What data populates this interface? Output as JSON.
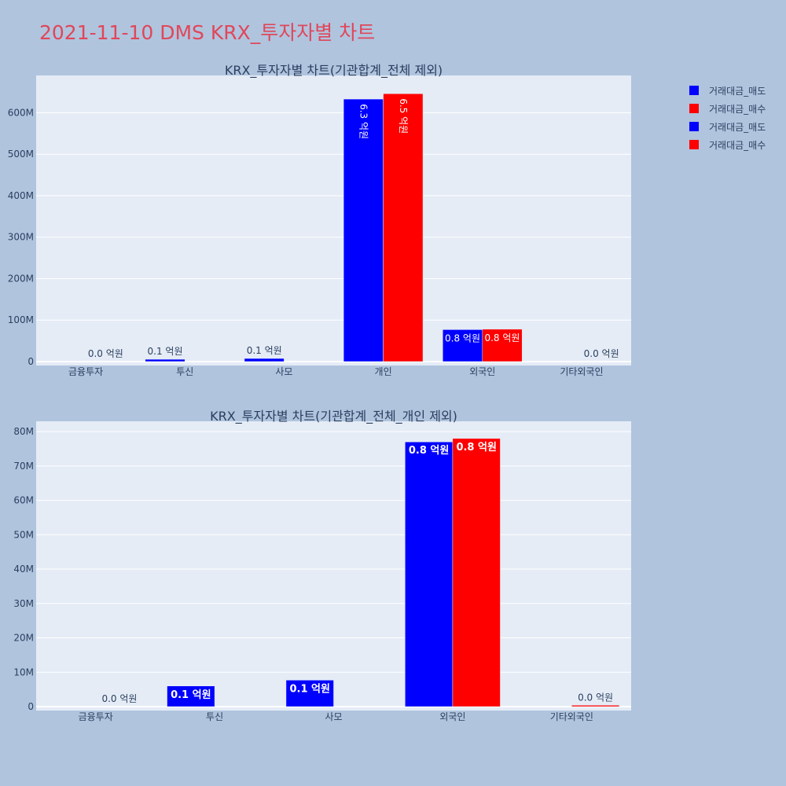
{
  "page_title": "2021-11-10 DMS KRX_투자자별 차트",
  "legend": [
    {
      "name": "거래대금_매도",
      "color": "#0000ff"
    },
    {
      "name": "거래대금_매수",
      "color": "#ff0000"
    },
    {
      "name": "거래대금_매도",
      "color": "#0000ff"
    },
    {
      "name": "거래대금_매수",
      "color": "#ff0000"
    }
  ],
  "chart_data": [
    {
      "type": "bar",
      "title": "KRX_투자자별 차트(기관합계_전체 제외)",
      "categories": [
        "금융투자",
        "투신",
        "사모",
        "개인",
        "외국인",
        "기타외국인"
      ],
      "ylim": [
        0,
        690000000
      ],
      "yticks": [
        0,
        100000000,
        200000000,
        300000000,
        400000000,
        500000000,
        600000000
      ],
      "ytick_labels": [
        "0",
        "100M",
        "200M",
        "300M",
        "400M",
        "500M",
        "600M"
      ],
      "series": [
        {
          "name": "거래대금_매도",
          "color": "#0000ff",
          "values": [
            0,
            5500000,
            7500000,
            633000000,
            77000000,
            0
          ],
          "labels": [
            "",
            "0.1 억원",
            "0.1 억원",
            "6.3 억원",
            "0.8 억원",
            ""
          ],
          "label_pos": [
            "",
            "outside",
            "outside",
            "inside-vertical",
            "inside",
            ""
          ]
        },
        {
          "name": "거래대금_매수",
          "color": "#ff0000",
          "values": [
            0,
            0,
            0,
            646000000,
            78000000,
            0
          ],
          "labels": [
            "0.0 억원",
            "",
            "",
            "6.5 억원",
            "0.8 억원",
            "0.0 억원"
          ],
          "label_pos": [
            "outside",
            "",
            "",
            "inside-vertical",
            "inside",
            "outside"
          ]
        }
      ]
    },
    {
      "type": "bar",
      "title": "KRX_투자자별 차트(기관합계_전체_개인 제외)",
      "categories": [
        "금융투자",
        "투신",
        "사모",
        "외국인",
        "기타외국인"
      ],
      "ylim": [
        0,
        83000000
      ],
      "yticks": [
        0,
        10000000,
        20000000,
        30000000,
        40000000,
        50000000,
        60000000,
        70000000,
        80000000
      ],
      "ytick_labels": [
        "0",
        "10M",
        "20M",
        "30M",
        "40M",
        "50M",
        "60M",
        "70M",
        "80M"
      ],
      "series": [
        {
          "name": "거래대금_매도",
          "color": "#0000ff",
          "values": [
            0,
            6000000,
            7700000,
            77000000,
            0
          ],
          "labels": [
            "",
            "0.1 억원",
            "0.1 억원",
            "0.8 억원",
            ""
          ],
          "label_pos": [
            "",
            "inside",
            "inside",
            "inside",
            ""
          ]
        },
        {
          "name": "거래대금_매수",
          "color": "#ff0000",
          "values": [
            0,
            0,
            0,
            78000000,
            400000
          ],
          "labels": [
            "0.0 억원",
            "",
            "",
            "0.8 억원",
            "0.0 억원"
          ],
          "label_pos": [
            "outside",
            "",
            "",
            "inside",
            "outside"
          ]
        }
      ]
    }
  ]
}
